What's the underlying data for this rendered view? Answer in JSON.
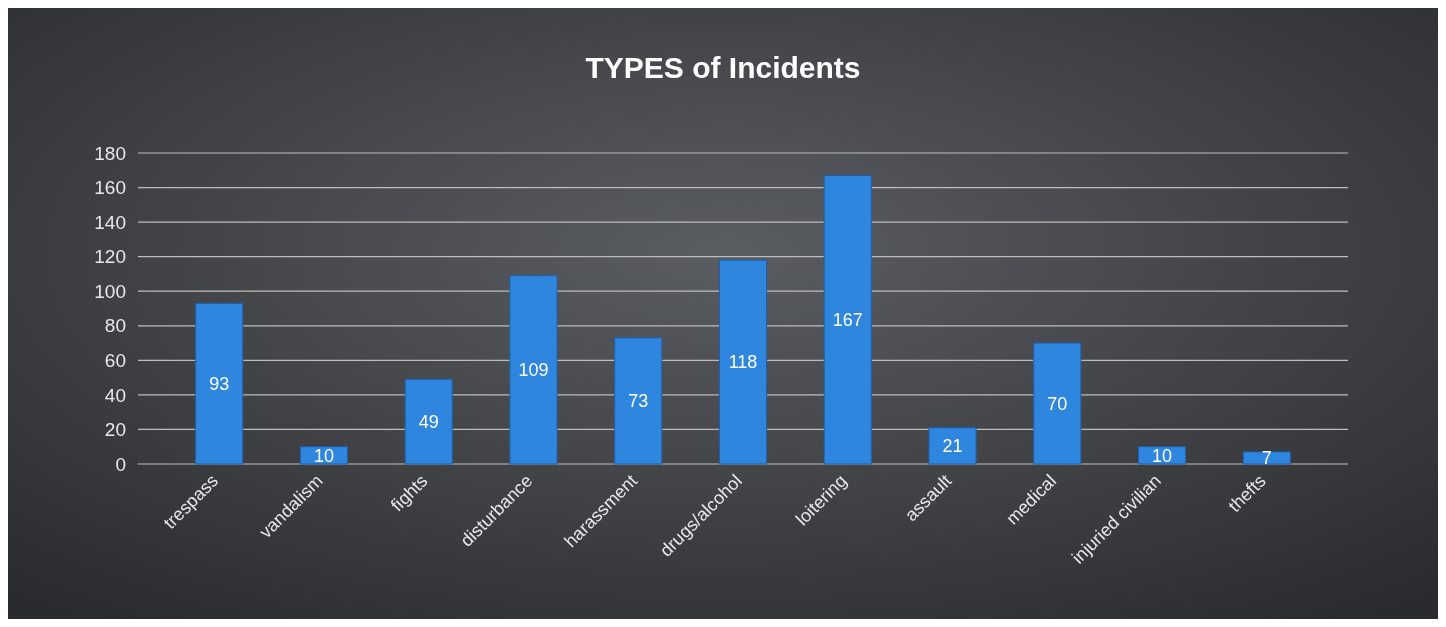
{
  "chart_data": {
    "type": "bar",
    "title": "TYPES of Incidents",
    "categories": [
      "trespass",
      "vandalism",
      "fights",
      "disturbance",
      "harassment",
      "drugs/alcohol",
      "loitering",
      "assault",
      "medical",
      "injuried civilian",
      "thefts"
    ],
    "values": [
      93,
      10,
      49,
      109,
      73,
      118,
      167,
      21,
      70,
      10,
      7
    ],
    "color": "#2e86de",
    "ylim": [
      0,
      180
    ],
    "yticks": [
      0,
      20,
      40,
      60,
      80,
      100,
      120,
      140,
      160,
      180
    ],
    "grid": "y",
    "data_labels": true
  }
}
